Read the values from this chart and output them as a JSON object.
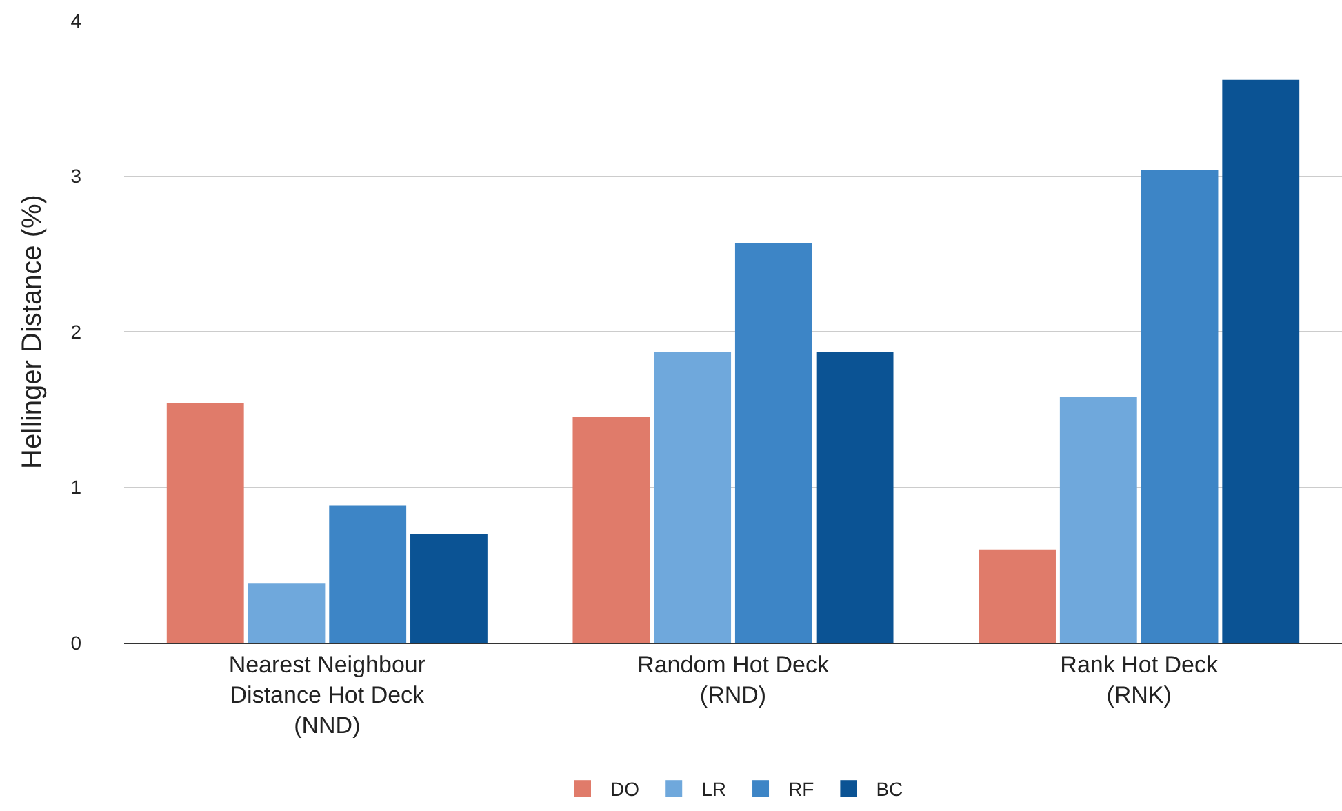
{
  "chart_data": {
    "type": "bar",
    "ylabel": "Hellinger Distance (%)",
    "categories": [
      "Nearest Neighbour\nDistance Hot Deck\n(NND)",
      "Random Hot Deck\n(RND)",
      "Rank Hot Deck\n(RNK)"
    ],
    "series": [
      {
        "name": "DO",
        "color": "#e07b6a",
        "values": [
          1.54,
          1.45,
          0.6
        ]
      },
      {
        "name": "LR",
        "color": "#6fa8dc",
        "values": [
          0.38,
          1.87,
          1.58
        ]
      },
      {
        "name": "RF",
        "color": "#3d85c6",
        "values": [
          0.88,
          2.57,
          3.04
        ]
      },
      {
        "name": "BC",
        "color": "#0b5394",
        "values": [
          0.7,
          1.87,
          3.62
        ]
      }
    ],
    "ylim": [
      0,
      4
    ],
    "yticks": [
      0,
      1,
      2,
      3,
      4
    ],
    "grid": "y",
    "legend": "bottom"
  }
}
